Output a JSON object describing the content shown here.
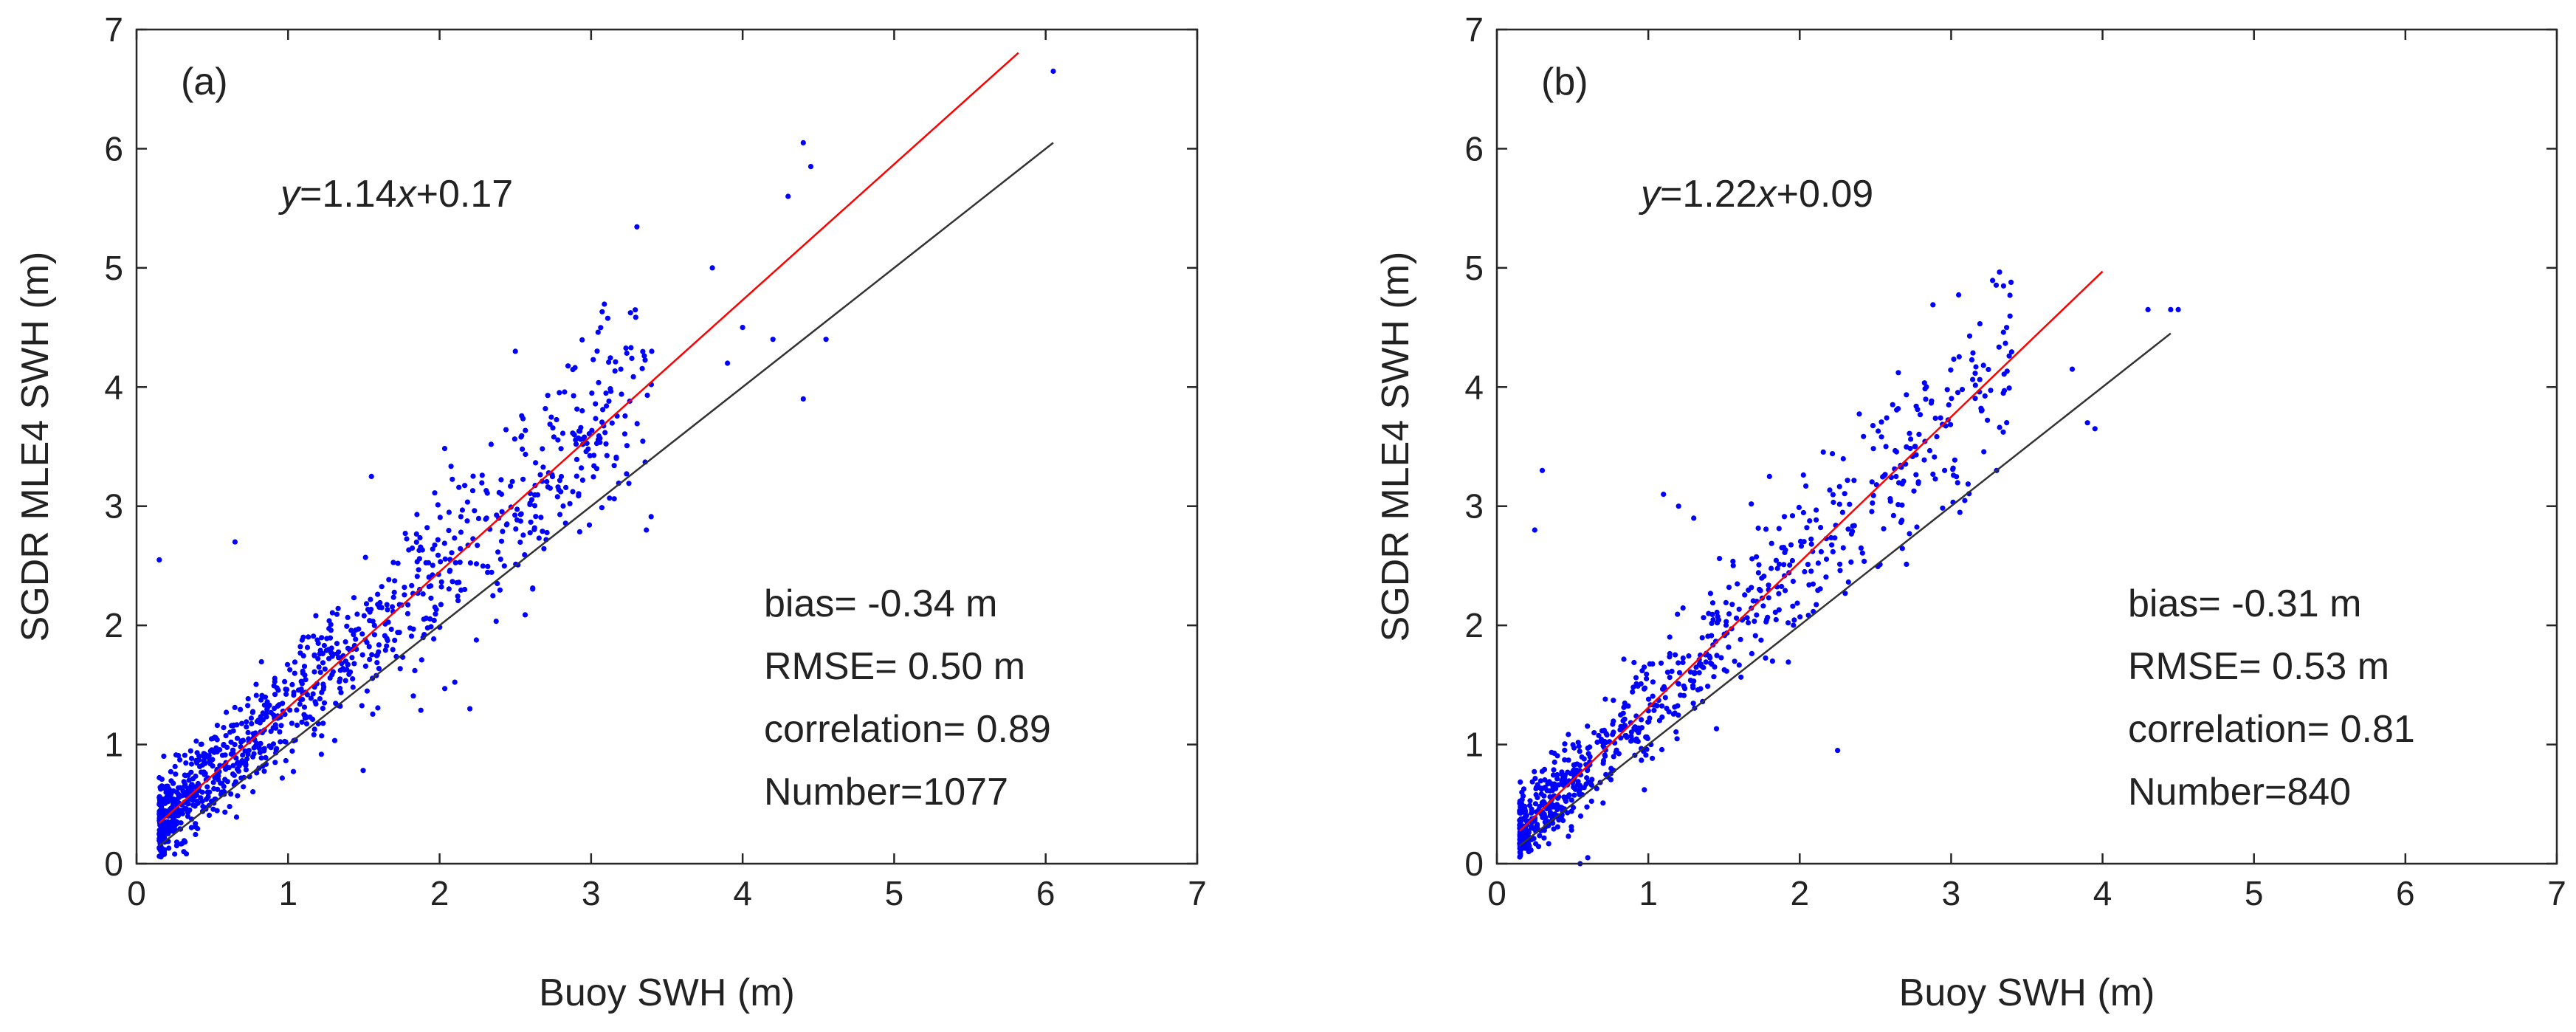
{
  "chart_data": [
    {
      "type": "scatter",
      "panel_label": "(a)",
      "xlabel": "Buoy SWH (m)",
      "ylabel": "SGDR MLE4 SWH (m)",
      "xlim": [
        0,
        7
      ],
      "ylim": [
        0,
        7
      ],
      "xticks": [
        "0",
        "1",
        "2",
        "3",
        "4",
        "5",
        "6",
        "7"
      ],
      "yticks": [
        "0",
        "1",
        "2",
        "3",
        "4",
        "5",
        "6",
        "7"
      ],
      "grid": false,
      "equation": {
        "y": "y",
        "rest1": "=1.14",
        "x": "x",
        "rest2": "+0.17"
      },
      "fit_line": {
        "slope": 1.14,
        "intercept": 0.17,
        "x_range": [
          0.15,
          5.82
        ],
        "color": "#ff0000"
      },
      "identity_line": {
        "slope": 1.0,
        "intercept": 0.0,
        "x_range": [
          0.15,
          6.05
        ],
        "color": "#333333"
      },
      "stats": {
        "bias": "bias= -0.34 m",
        "rmse": "RMSE= 0.50 m",
        "correlation": "correlation= 0.89",
        "number": "Number=1077"
      },
      "scatter_params": {
        "count": 1077,
        "x_min": 0.15,
        "x_max": 6.1,
        "slope": 1.14,
        "intercept": 0.17,
        "bias": -0.34,
        "seed": 11
      },
      "outliers": [
        [
          6.05,
          6.65
        ],
        [
          4.4,
          6.05
        ],
        [
          4.45,
          5.85
        ],
        [
          4.3,
          5.6
        ],
        [
          3.8,
          5.0
        ],
        [
          2.5,
          4.3
        ],
        [
          4.0,
          4.5
        ],
        [
          4.2,
          4.4
        ],
        [
          4.4,
          3.9
        ],
        [
          4.55,
          4.4
        ],
        [
          3.9,
          4.2
        ],
        [
          3.4,
          4.3
        ],
        [
          0.15,
          2.55
        ],
        [
          1.55,
          3.25
        ],
        [
          2.2,
          1.3
        ],
        [
          0.65,
          2.7
        ]
      ],
      "point_color": "#0000ff"
    },
    {
      "type": "scatter",
      "panel_label": "(b)",
      "xlabel": "Buoy SWH (m)",
      "ylabel": "SGDR MLE4 SWH (m)",
      "xlim": [
        0,
        7
      ],
      "ylim": [
        0,
        7
      ],
      "xticks": [
        "0",
        "1",
        "2",
        "3",
        "4",
        "5",
        "6",
        "7"
      ],
      "yticks": [
        "0",
        "1",
        "2",
        "3",
        "4",
        "5",
        "6",
        "7"
      ],
      "grid": false,
      "equation": {
        "y": "y",
        "rest1": "=1.22",
        "x": "x",
        "rest2": "+0.09"
      },
      "fit_line": {
        "slope": 1.22,
        "intercept": 0.09,
        "x_range": [
          0.15,
          4.0
        ],
        "color": "#ff0000"
      },
      "identity_line": {
        "slope": 1.0,
        "intercept": 0.0,
        "x_range": [
          0.15,
          4.45
        ],
        "color": "#333333"
      },
      "stats": {
        "bias": "bias= -0.31 m",
        "rmse": "RMSE= 0.53 m",
        "correlation": "correlation= 0.81",
        "number": "Number=840"
      },
      "scatter_params": {
        "count": 840,
        "x_min": 0.15,
        "x_max": 4.5,
        "slope": 1.22,
        "intercept": 0.09,
        "bias": -0.31,
        "seed": 29
      },
      "outliers": [
        [
          4.3,
          4.65
        ],
        [
          4.45,
          4.65
        ],
        [
          4.5,
          4.65
        ],
        [
          3.8,
          4.15
        ],
        [
          3.9,
          3.7
        ],
        [
          3.95,
          3.65
        ],
        [
          3.2,
          3.8
        ],
        [
          3.3,
          3.3
        ],
        [
          0.3,
          3.3
        ],
        [
          1.8,
          3.25
        ],
        [
          1.1,
          3.1
        ],
        [
          1.2,
          3.0
        ],
        [
          1.3,
          2.9
        ],
        [
          0.25,
          2.8
        ],
        [
          2.25,
          0.95
        ],
        [
          0.6,
          0.05
        ],
        [
          0.55,
          0.0
        ]
      ],
      "point_color": "#0000ff"
    }
  ]
}
